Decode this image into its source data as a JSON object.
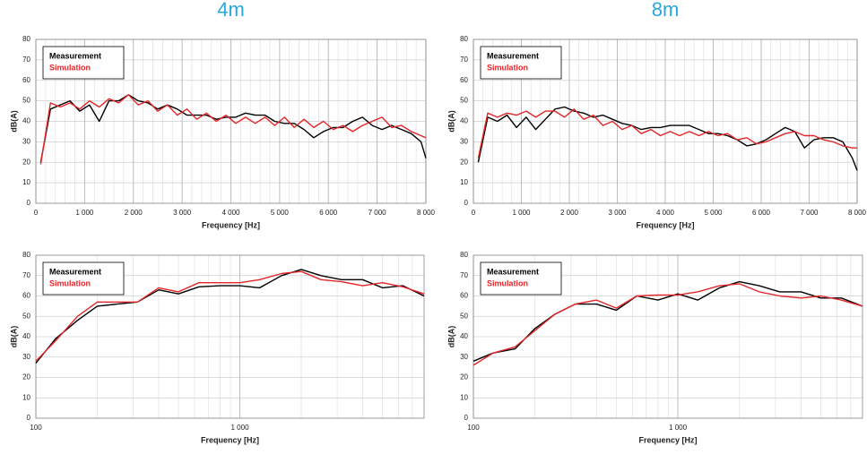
{
  "chart_data": [
    {
      "type": "line",
      "title": "4m",
      "xlabel": "Frequency [Hz]",
      "ylabel": "dB(A)",
      "x": [
        100,
        300,
        500,
        700,
        900,
        1100,
        1300,
        1500,
        1700,
        1900,
        2100,
        2300,
        2500,
        2700,
        2900,
        3100,
        3300,
        3500,
        3700,
        3900,
        4100,
        4300,
        4500,
        4700,
        4900,
        5100,
        5300,
        5500,
        5700,
        5900,
        6100,
        6300,
        6500,
        6700,
        6900,
        7100,
        7300,
        7500,
        7700,
        7900,
        8000
      ],
      "series": [
        {
          "name": "Measurement",
          "color": "#000000",
          "values": [
            20,
            46,
            48,
            50,
            45,
            48,
            40,
            50,
            50,
            53,
            50,
            49,
            46,
            48,
            46,
            43,
            43,
            43,
            41,
            42,
            42,
            44,
            43,
            43,
            40,
            39,
            39,
            36,
            32,
            35,
            37,
            37,
            40,
            42,
            38,
            36,
            38,
            36,
            34,
            30,
            22
          ]
        },
        {
          "name": "Simulation",
          "color": "#e3262a",
          "values": [
            19,
            49,
            47,
            49,
            46,
            50,
            47,
            51,
            49,
            53,
            48,
            50,
            45,
            48,
            43,
            46,
            41,
            44,
            40,
            43,
            39,
            42,
            39,
            42,
            38,
            42,
            37,
            41,
            37,
            40,
            36,
            38,
            35,
            38,
            40,
            42,
            37,
            38,
            35,
            33,
            32
          ]
        }
      ],
      "xlim": [
        0,
        8000
      ],
      "xticks": [
        0,
        {
          "value": 1000,
          "label": "1 000"
        },
        {
          "value": 2000,
          "label": "2 000"
        },
        {
          "value": 3000,
          "label": "3 000"
        },
        {
          "value": 4000,
          "label": "4 000"
        },
        {
          "value": 5000,
          "label": "5 000"
        },
        {
          "value": 6000,
          "label": "6 000"
        },
        {
          "value": 7000,
          "label": "7 000"
        },
        {
          "value": 8000,
          "label": "8 000"
        }
      ],
      "ylim": [
        0,
        80
      ],
      "yticks": [
        0,
        10,
        20,
        30,
        40,
        50,
        60,
        70,
        80
      ],
      "grid": true,
      "legend": "upper left"
    },
    {
      "type": "line",
      "title": "8m",
      "xlabel": "Frequency [Hz]",
      "ylabel": "dB(A)",
      "x": [
        100,
        300,
        500,
        700,
        900,
        1100,
        1300,
        1500,
        1700,
        1900,
        2100,
        2300,
        2500,
        2700,
        2900,
        3100,
        3300,
        3500,
        3700,
        3900,
        4100,
        4300,
        4500,
        4700,
        4900,
        5100,
        5300,
        5500,
        5700,
        5900,
        6100,
        6300,
        6500,
        6700,
        6900,
        7100,
        7300,
        7500,
        7700,
        7900,
        8000
      ],
      "series": [
        {
          "name": "Measurement",
          "color": "#000000",
          "values": [
            20,
            42,
            40,
            43,
            37,
            42,
            36,
            41,
            46,
            47,
            45,
            44,
            42,
            43,
            41,
            39,
            38,
            36,
            37,
            37,
            38,
            38,
            38,
            36,
            34,
            34,
            33,
            31,
            28,
            29,
            31,
            34,
            37,
            35,
            27,
            31,
            32,
            32,
            30,
            22,
            16
          ]
        },
        {
          "name": "Simulation",
          "color": "#e3262a",
          "values": [
            22,
            44,
            42,
            44,
            43,
            45,
            42,
            45,
            45,
            42,
            46,
            41,
            43,
            38,
            40,
            36,
            38,
            34,
            36,
            33,
            35,
            33,
            35,
            33,
            35,
            33,
            34,
            31,
            32,
            29,
            30,
            32,
            34,
            35,
            33,
            33,
            31,
            30,
            28,
            27,
            27
          ]
        }
      ],
      "xlim": [
        0,
        8000
      ],
      "xticks": [
        0,
        {
          "value": 1000,
          "label": "1 000"
        },
        {
          "value": 2000,
          "label": "2 000"
        },
        {
          "value": 3000,
          "label": "3 000"
        },
        {
          "value": 4000,
          "label": "4 000"
        },
        {
          "value": 5000,
          "label": "5 000"
        },
        {
          "value": 6000,
          "label": "6 000"
        },
        {
          "value": 7000,
          "label": "7 000"
        },
        {
          "value": 8000,
          "label": "8 000"
        }
      ],
      "ylim": [
        0,
        80
      ],
      "yticks": [
        0,
        10,
        20,
        30,
        40,
        50,
        60,
        70,
        80
      ],
      "grid": true,
      "legend": "upper left"
    },
    {
      "type": "line",
      "xlabel": "Frequency [Hz]",
      "ylabel": "dB(A)",
      "xscale": "log",
      "x": [
        100,
        125,
        160,
        200,
        250,
        315,
        400,
        500,
        630,
        800,
        1000,
        1250,
        1600,
        2000,
        2500,
        3150,
        4000,
        5000,
        6300,
        8000
      ],
      "series": [
        {
          "name": "Measurement",
          "color": "#000000",
          "values": [
            27,
            39,
            48,
            55,
            56,
            57,
            63,
            61,
            64.5,
            65,
            65,
            64,
            70,
            73,
            70,
            68,
            68,
            64,
            65,
            60
          ]
        },
        {
          "name": "Simulation",
          "color": "#e3262a",
          "values": [
            28,
            38,
            50,
            57,
            57,
            57,
            64,
            62,
            66.5,
            66.5,
            66.5,
            68,
            71,
            72,
            68,
            67,
            65,
            66.5,
            64.5,
            61
          ]
        }
      ],
      "xlim": [
        100,
        8000
      ],
      "xticks": [
        100,
        {
          "value": 1000,
          "label": "1 000"
        }
      ],
      "ylim": [
        0,
        80
      ],
      "yticks": [
        0,
        10,
        20,
        30,
        40,
        50,
        60,
        70,
        80
      ],
      "grid": true,
      "legend": "upper left"
    },
    {
      "type": "line",
      "xlabel": "Frequency [Hz]",
      "ylabel": "dB(A)",
      "xscale": "log",
      "x": [
        100,
        125,
        160,
        200,
        250,
        315,
        400,
        500,
        630,
        800,
        1000,
        1250,
        1600,
        2000,
        2500,
        3150,
        4000,
        5000,
        6300,
        8000
      ],
      "series": [
        {
          "name": "Measurement",
          "color": "#000000",
          "values": [
            28,
            32,
            34,
            44,
            51,
            56,
            56,
            53,
            60,
            58,
            61,
            58,
            64,
            67,
            65,
            62,
            62,
            59,
            59,
            55
          ]
        },
        {
          "name": "Simulation",
          "color": "#e3262a",
          "values": [
            26,
            32,
            35,
            43,
            51,
            56,
            58,
            54,
            60,
            60.5,
            60.5,
            62,
            65,
            66,
            62,
            60,
            59,
            60,
            58,
            55
          ]
        }
      ],
      "xlim": [
        100,
        8000
      ],
      "xticks": [
        100,
        {
          "value": 1000,
          "label": "1 000"
        }
      ],
      "ylim": [
        0,
        80
      ],
      "yticks": [
        0,
        10,
        20,
        30,
        40,
        50,
        60,
        70,
        80
      ],
      "grid": true,
      "legend": "upper left"
    }
  ]
}
